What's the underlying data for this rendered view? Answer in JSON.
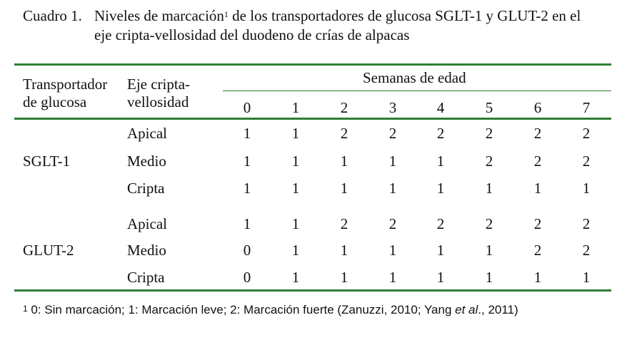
{
  "caption": {
    "label": "Cuadro 1.",
    "line1_a": "Niveles de marcación",
    "sup": "1",
    "line1_b": " de los transportadores de glucosa SGLT-1 y GLUT-2 en el",
    "line2": "eje cripta-vellosidad del duodeno de crías de alpacas"
  },
  "header": {
    "col1_line1": "Transportador",
    "col1_line2": "de glucosa",
    "col2_line1": "Eje cripta-",
    "col2_line2": "vellosidad",
    "group": "Semanas de edad",
    "weeks": [
      "0",
      "1",
      "2",
      "3",
      "4",
      "5",
      "6",
      "7"
    ]
  },
  "groups": [
    {
      "transporter": "SGLT-1",
      "rows": [
        {
          "region": "Apical",
          "values": [
            "1",
            "1",
            "2",
            "2",
            "2",
            "2",
            "2",
            "2"
          ]
        },
        {
          "region": "Medio",
          "values": [
            "1",
            "1",
            "1",
            "1",
            "1",
            "2",
            "2",
            "2"
          ]
        },
        {
          "region": "Cripta",
          "values": [
            "1",
            "1",
            "1",
            "1",
            "1",
            "1",
            "1",
            "1"
          ]
        }
      ]
    },
    {
      "transporter": "GLUT-2",
      "rows": [
        {
          "region": "Apical",
          "values": [
            "1",
            "1",
            "2",
            "2",
            "2",
            "2",
            "2",
            "2"
          ]
        },
        {
          "region": "Medio",
          "values": [
            "0",
            "1",
            "1",
            "1",
            "1",
            "1",
            "2",
            "2"
          ]
        },
        {
          "region": "Cripta",
          "values": [
            "0",
            "1",
            "1",
            "1",
            "1",
            "1",
            "1",
            "1"
          ]
        }
      ]
    }
  ],
  "footnote": {
    "sup": "1",
    "text_a": " 0: Sin marcación; 1: Marcación leve; 2: Marcación fuerte (Zanuzzi, 2010; Yang ",
    "italic": "et al",
    "text_b": "., 2011)"
  },
  "colors": {
    "rule": "#2e7d32"
  }
}
